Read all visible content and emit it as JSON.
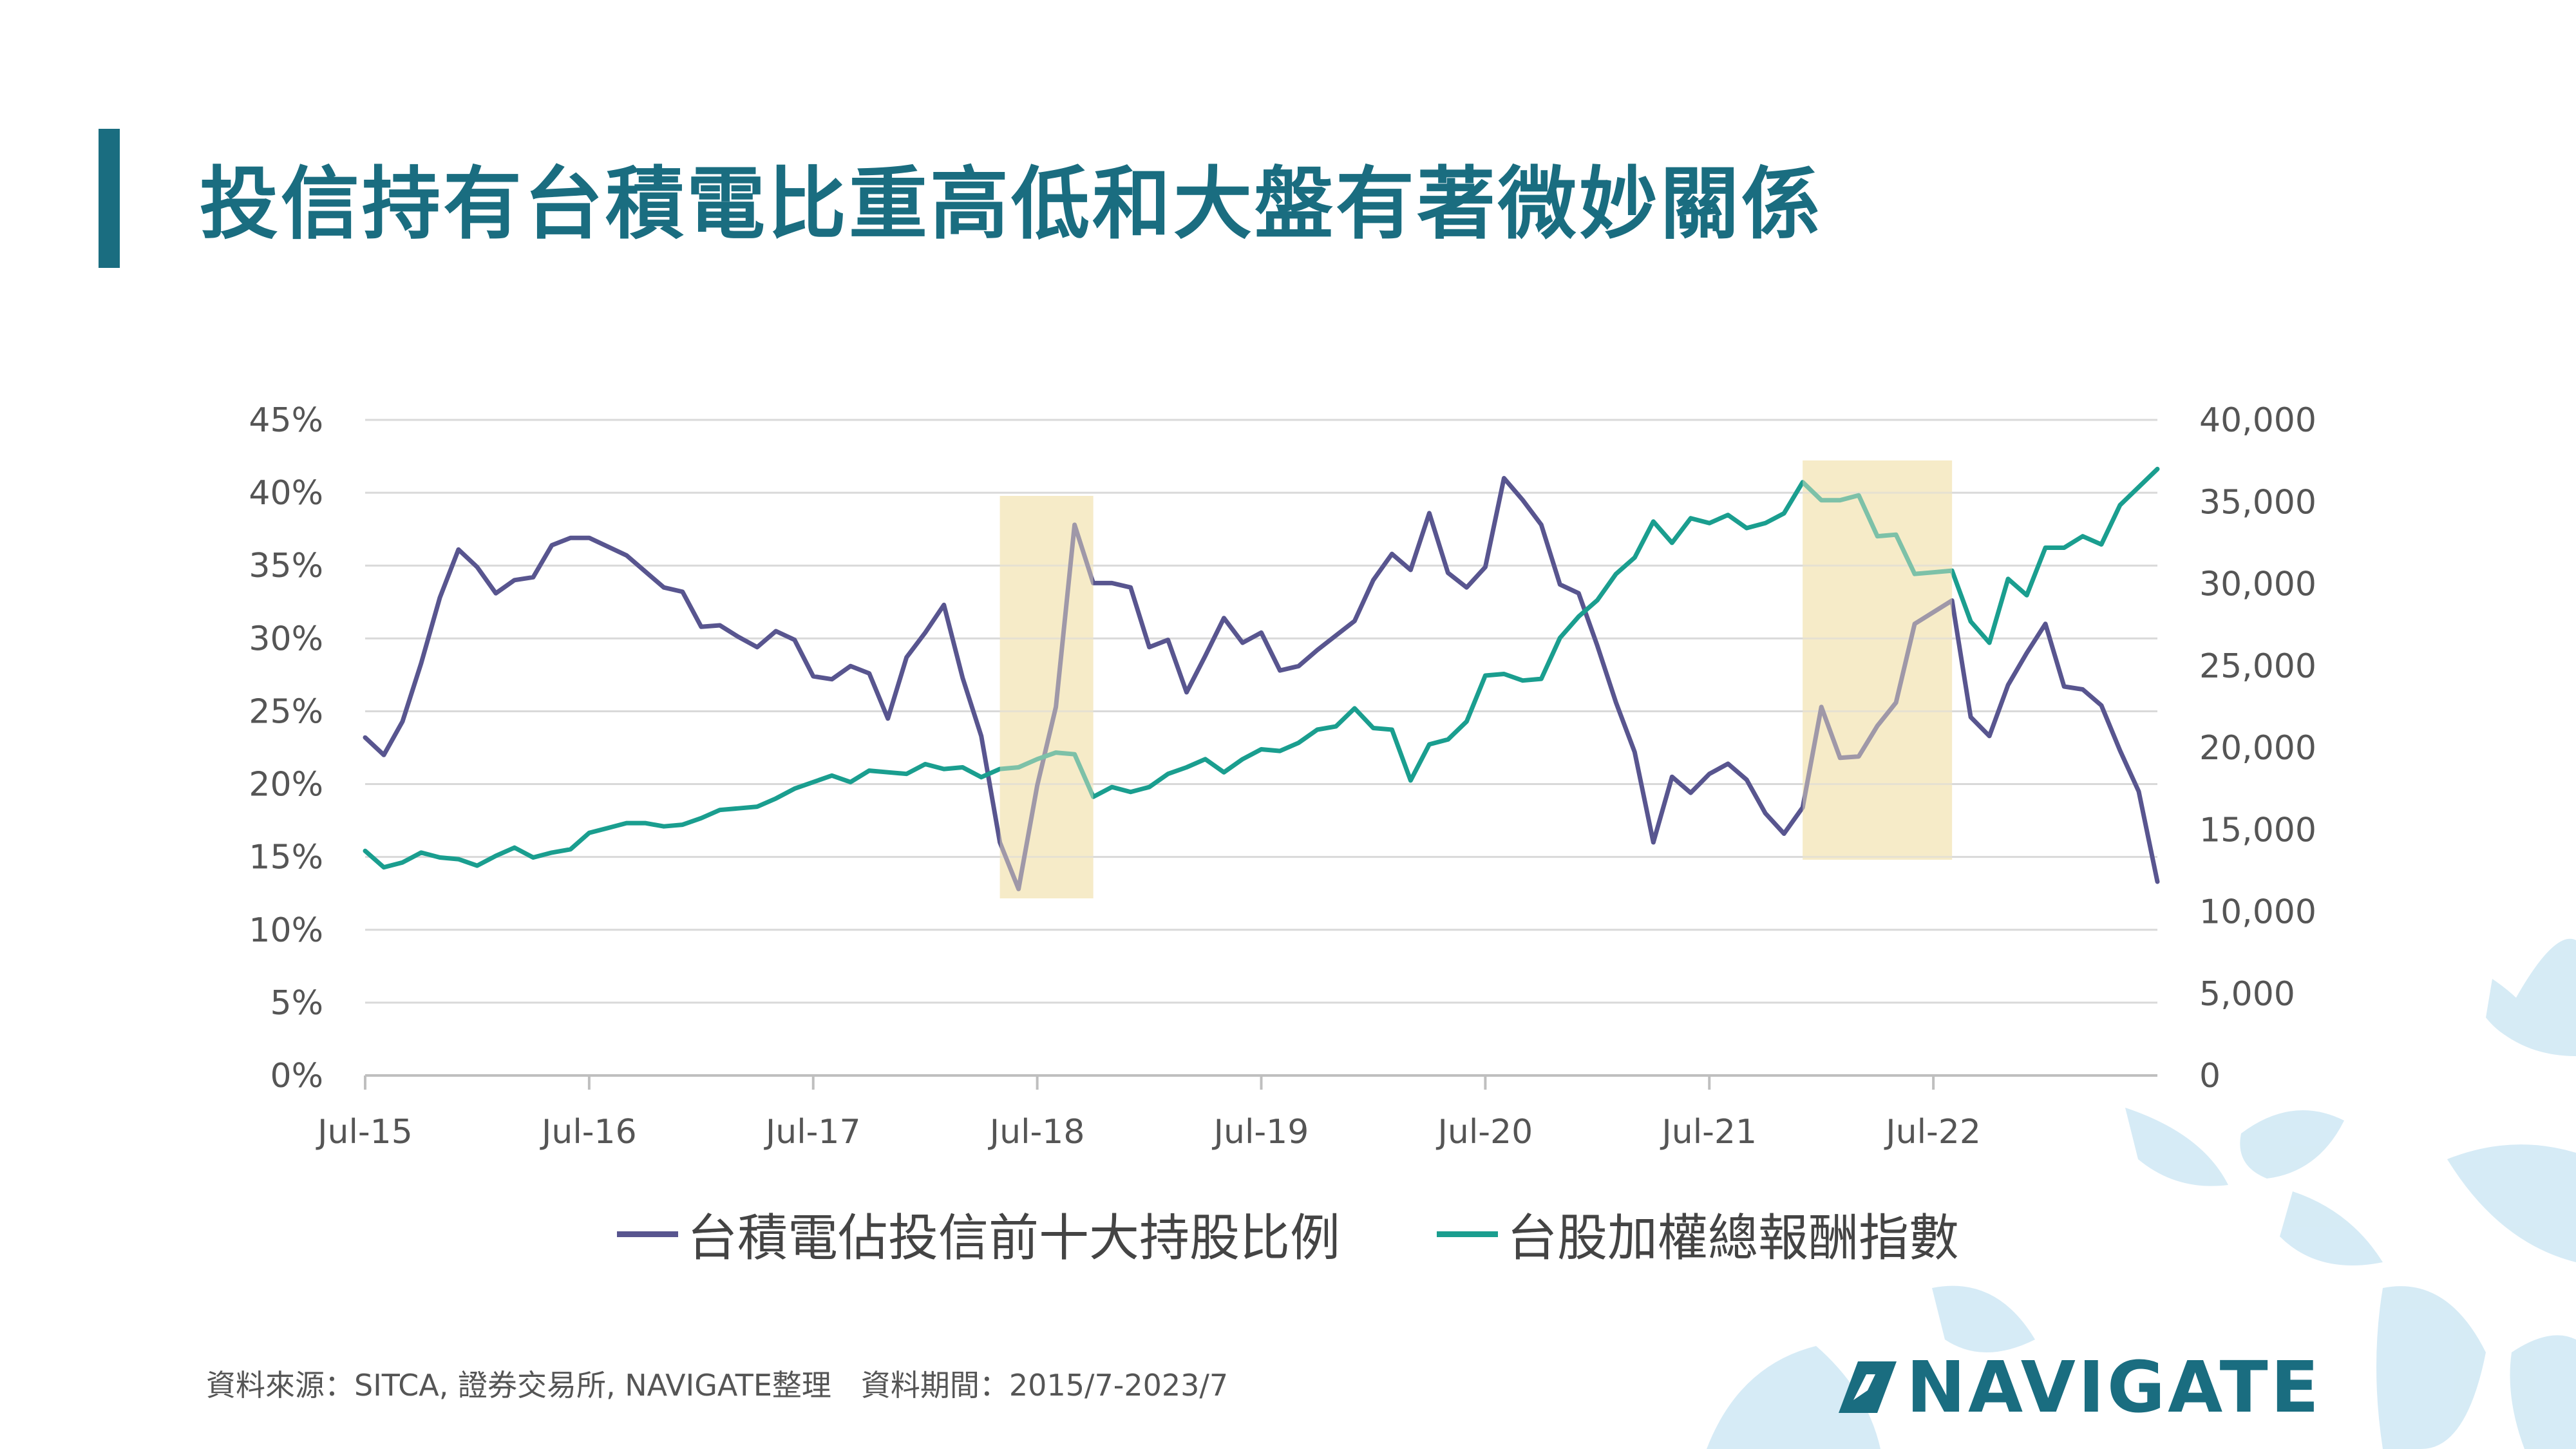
{
  "title": "投信持有台積電比重高低和大盤有著微妙關係",
  "footnote": "資料來源：SITCA, 證券交易所, NAVIGATE整理　資料期間：2015/7-2023/7",
  "logo_text": "NAVIGATE",
  "colors": {
    "title": "#1a6d80",
    "series_left": "#58558f",
    "series_right": "#1a9e8f",
    "highlight": "#f6ebc8",
    "logo": "#1a6d80",
    "decor": "#cfe8f4"
  },
  "chart_data": {
    "type": "line",
    "left_axis": {
      "min": 0,
      "max": 0.45,
      "ticks": [
        "0%",
        "5%",
        "10%",
        "15%",
        "20%",
        "25%",
        "30%",
        "35%",
        "40%",
        "45%"
      ]
    },
    "right_axis": {
      "min": 0,
      "max": 40000,
      "ticks": [
        "0",
        "5,000",
        "10,000",
        "15,000",
        "20,000",
        "25,000",
        "30,000",
        "35,000",
        "40,000"
      ]
    },
    "x_start": "2015-07",
    "x_end": "2023-07",
    "x_tick_labels": [
      "Jul-15",
      "Jul-16",
      "Jul-17",
      "Jul-18",
      "Jul-19",
      "Jul-20",
      "Jul-21",
      "Jul-22"
    ],
    "grid": "horizontal",
    "legend_position": "bottom",
    "highlight_periods": [
      [
        "2018-05",
        "2018-10"
      ],
      [
        "2021-12",
        "2022-08"
      ]
    ],
    "series": [
      {
        "name": "台積電佔投信前十大持股比例",
        "axis": "left",
        "values": [
          0.232,
          0.22,
          0.243,
          0.283,
          0.328,
          0.361,
          0.349,
          0.331,
          0.34,
          0.342,
          0.364,
          0.369,
          0.369,
          0.363,
          0.357,
          0.346,
          0.335,
          0.332,
          0.308,
          0.309,
          0.301,
          0.294,
          0.305,
          0.299,
          0.274,
          0.272,
          0.281,
          0.276,
          0.245,
          0.287,
          0.304,
          0.323,
          0.273,
          0.233,
          0.16,
          0.128,
          0.199,
          0.253,
          0.378,
          0.338,
          0.338,
          0.335,
          0.294,
          0.299,
          0.263,
          0.288,
          0.314,
          0.297,
          0.304,
          0.278,
          0.281,
          0.292,
          0.302,
          0.312,
          0.34,
          0.358,
          0.347,
          0.386,
          0.345,
          0.335,
          0.349,
          0.41,
          0.395,
          0.378,
          0.337,
          0.331,
          0.295,
          0.256,
          0.222,
          0.16,
          0.205,
          0.194,
          0.207,
          0.214,
          0.203,
          0.18,
          0.166,
          0.184,
          0.253,
          0.218,
          0.219,
          0.24,
          0.256,
          0.31,
          0.318,
          0.326,
          0.246,
          0.233,
          0.268,
          0.29,
          0.31,
          0.267,
          0.265,
          0.254,
          0.223,
          0.195,
          0.133
        ]
      },
      {
        "name": "台股加權總報酬指數",
        "axis": "right",
        "values": [
          13700,
          12700,
          13000,
          13600,
          13300,
          13200,
          12800,
          13400,
          13900,
          13300,
          13600,
          13800,
          14800,
          15100,
          15400,
          15400,
          15200,
          15300,
          15700,
          16200,
          16300,
          16400,
          16900,
          17500,
          17900,
          18300,
          17900,
          18600,
          18500,
          18400,
          19000,
          18700,
          18800,
          18200,
          18700,
          18800,
          19300,
          19700,
          19600,
          17000,
          17600,
          17300,
          17600,
          18400,
          18800,
          19300,
          18500,
          19300,
          19900,
          19800,
          20300,
          21100,
          21300,
          22400,
          21200,
          21100,
          18000,
          20200,
          20500,
          21600,
          24400,
          24500,
          24100,
          24200,
          26700,
          28000,
          29000,
          30600,
          31600,
          33800,
          32500,
          34000,
          33700,
          34200,
          33400,
          33700,
          34300,
          36200,
          35100,
          35100,
          35400,
          32900,
          33000,
          30600,
          30700,
          30800,
          27700,
          26400,
          30300,
          29300,
          32200,
          32200,
          32900,
          32400,
          34800,
          35900,
          37000
        ]
      }
    ]
  }
}
